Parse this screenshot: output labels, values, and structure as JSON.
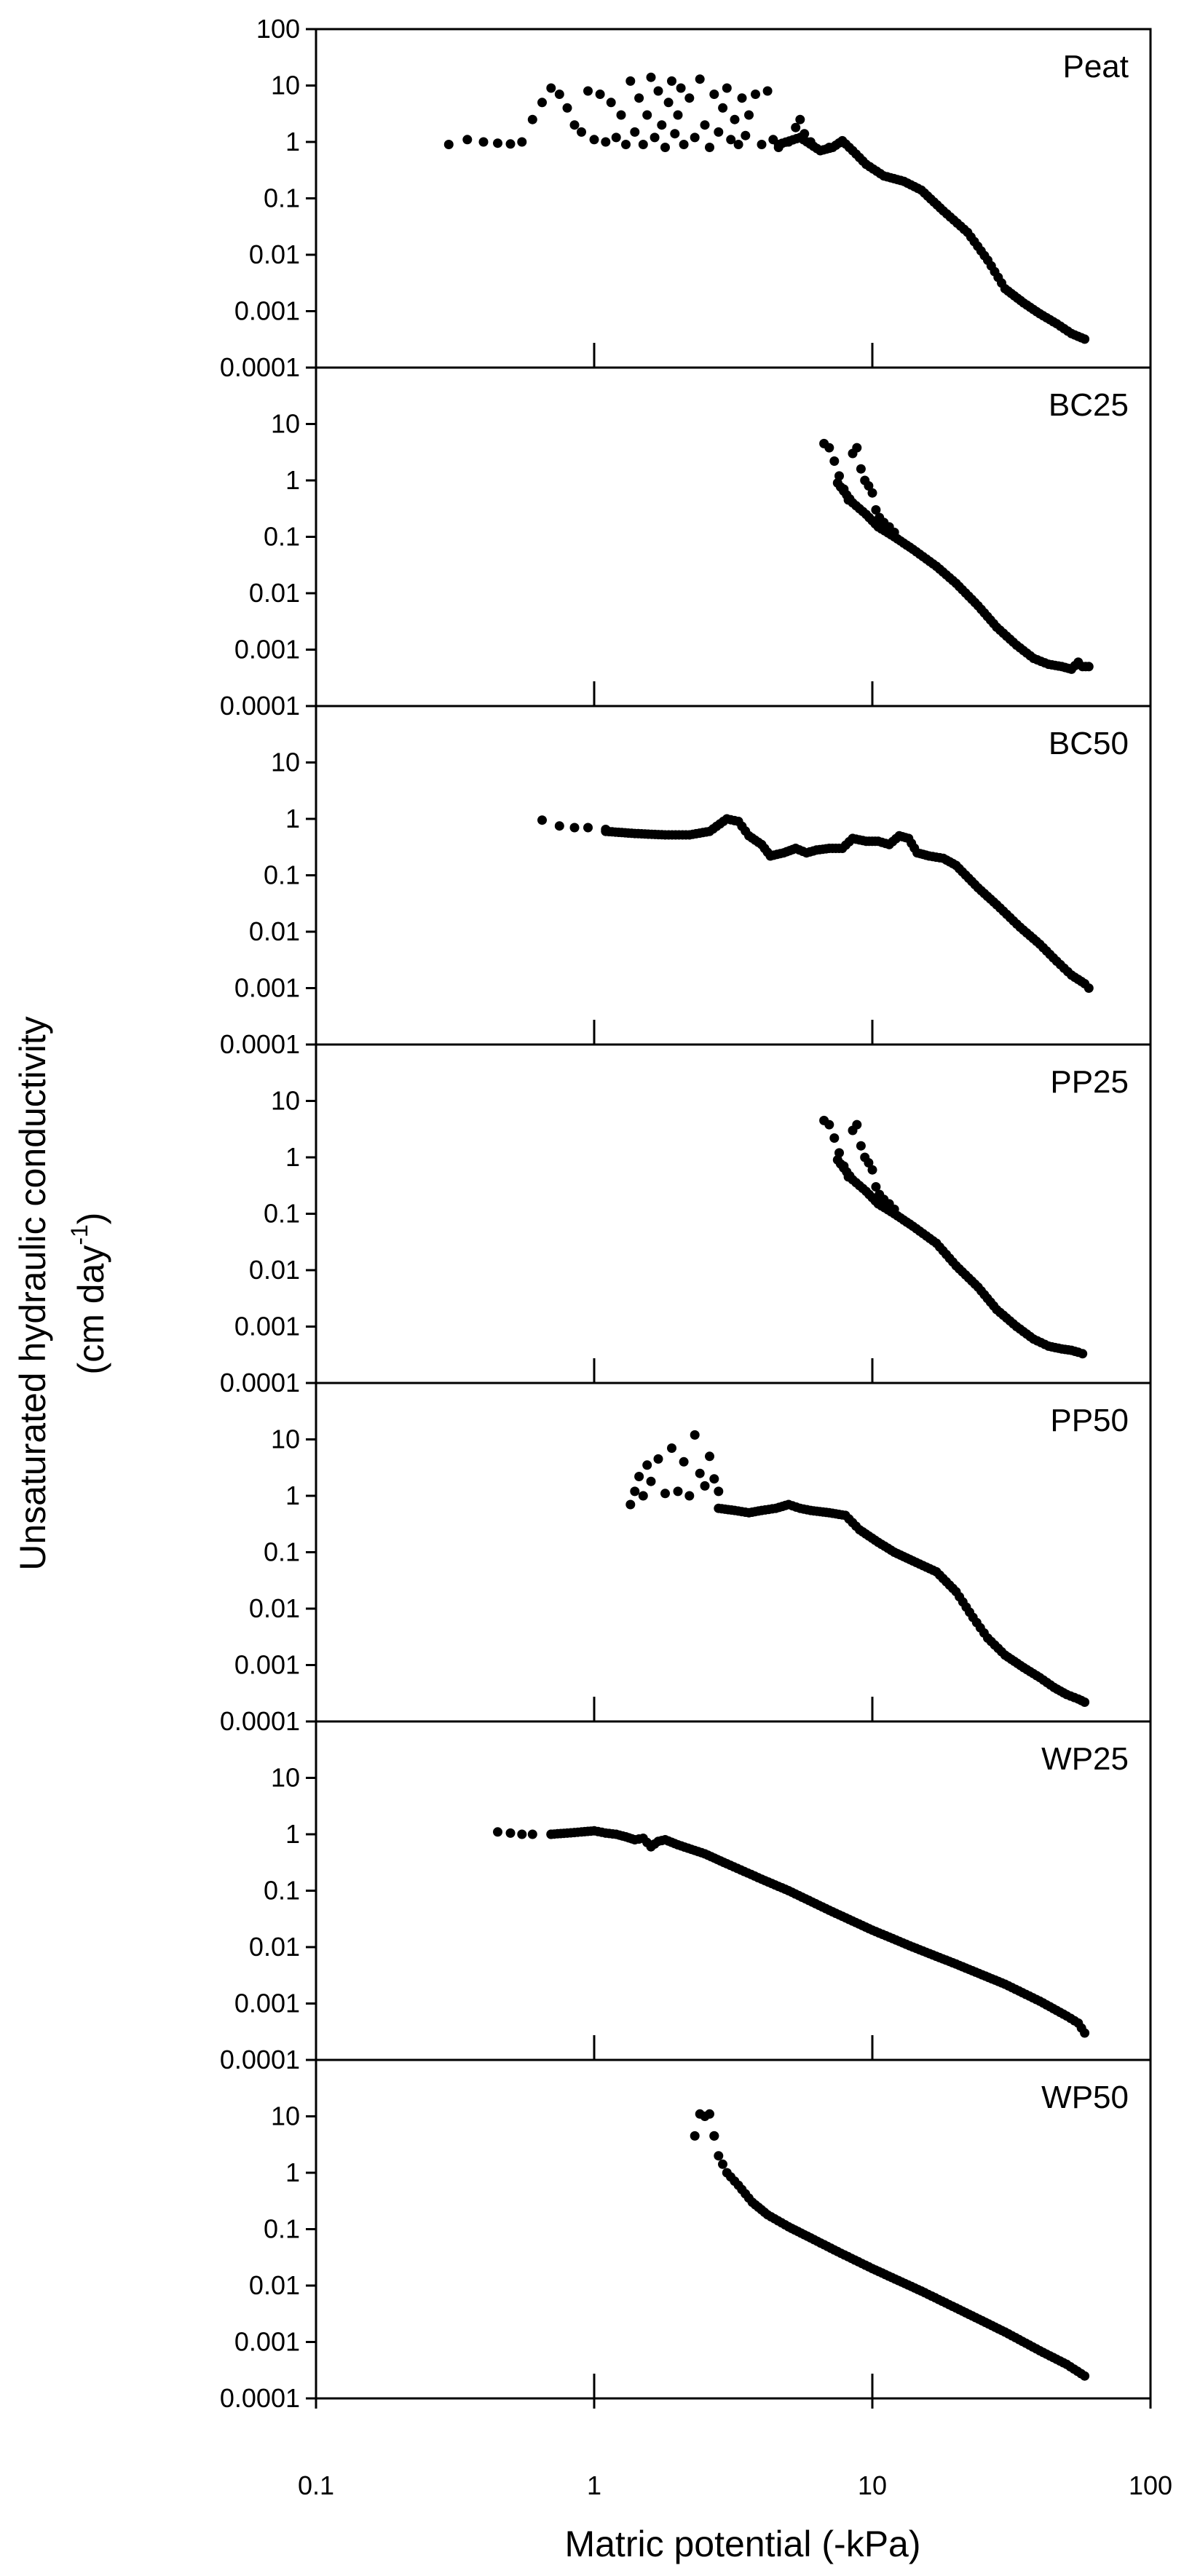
{
  "chart_data": {
    "type": "scatter",
    "layout": "vertical stacked panels sharing x axis",
    "xlabel": "Matric potential (-kPa)",
    "ylabel": "Unsaturated hydraulic conductivity",
    "ylabel_units": "(cm day",
    "ylabel_units_exp": "-1",
    "ylabel_units_close": ")",
    "xscale": "log",
    "yscale": "log",
    "xlim": [
      0.1,
      100
    ],
    "ylim": [
      0.0001,
      100
    ],
    "x_ticks": [
      0.1,
      1,
      10,
      100
    ],
    "x_tick_labels": [
      "0.1",
      "1",
      "10",
      "100"
    ],
    "y_ticks": [
      0.0001,
      0.001,
      0.01,
      0.1,
      1,
      10,
      100
    ],
    "y_tick_labels": [
      "0.0001",
      "0.001",
      "0.01",
      "0.1",
      "1",
      "10",
      "100"
    ],
    "marker": "filled circle",
    "marker_color": "#000000",
    "panels": [
      {
        "name": "Peat",
        "scatter": [
          [
            0.3,
            0.9
          ],
          [
            0.35,
            1.1
          ],
          [
            0.4,
            1.0
          ],
          [
            0.45,
            0.95
          ],
          [
            0.5,
            0.92
          ],
          [
            0.55,
            1.0
          ],
          [
            0.6,
            2.5
          ],
          [
            0.65,
            5
          ],
          [
            0.7,
            9
          ],
          [
            0.75,
            7
          ],
          [
            0.8,
            4
          ],
          [
            0.85,
            2
          ],
          [
            0.9,
            1.5
          ],
          [
            0.95,
            8
          ],
          [
            1.0,
            1.1
          ],
          [
            1.05,
            7
          ],
          [
            1.1,
            1.0
          ],
          [
            1.15,
            5
          ],
          [
            1.2,
            1.2
          ],
          [
            1.25,
            3
          ],
          [
            1.3,
            0.9
          ],
          [
            1.35,
            12
          ],
          [
            1.4,
            1.5
          ],
          [
            1.45,
            6
          ],
          [
            1.5,
            0.9
          ],
          [
            1.55,
            3
          ],
          [
            1.6,
            14
          ],
          [
            1.65,
            1.2
          ],
          [
            1.7,
            8
          ],
          [
            1.75,
            2
          ],
          [
            1.8,
            0.8
          ],
          [
            1.85,
            5
          ],
          [
            1.9,
            12
          ],
          [
            1.95,
            1.4
          ],
          [
            2.0,
            3
          ],
          [
            2.05,
            9
          ],
          [
            2.1,
            0.9
          ],
          [
            2.2,
            6
          ],
          [
            2.3,
            1.2
          ],
          [
            2.4,
            13
          ],
          [
            2.5,
            2
          ],
          [
            2.6,
            0.8
          ],
          [
            2.7,
            7
          ],
          [
            2.8,
            1.5
          ],
          [
            2.9,
            4
          ],
          [
            3.0,
            9
          ],
          [
            3.1,
            1.1
          ],
          [
            3.2,
            2.5
          ],
          [
            3.3,
            0.9
          ],
          [
            3.4,
            6
          ],
          [
            3.5,
            1.3
          ],
          [
            3.6,
            3
          ],
          [
            3.8,
            7
          ],
          [
            4.0,
            0.9
          ],
          [
            4.2,
            8
          ],
          [
            4.4,
            1.1
          ],
          [
            4.6,
            0.8
          ],
          [
            5.0,
            1.0
          ],
          [
            5.3,
            1.8
          ],
          [
            5.5,
            2.5
          ],
          [
            5.7,
            1.4
          ],
          [
            6.0,
            1.0
          ],
          [
            7.0,
            0.8
          ]
        ],
        "curve": [
          [
            4.6,
            0.9
          ],
          [
            5.5,
            1.2
          ],
          [
            6.5,
            0.7
          ],
          [
            7.2,
            0.8
          ],
          [
            7.8,
            1.05
          ],
          [
            8.5,
            0.7
          ],
          [
            9.5,
            0.4
          ],
          [
            11,
            0.25
          ],
          [
            13,
            0.2
          ],
          [
            15,
            0.14
          ],
          [
            18,
            0.06
          ],
          [
            22,
            0.025
          ],
          [
            26,
            0.008
          ],
          [
            30,
            0.0025
          ],
          [
            35,
            0.0014
          ],
          [
            40,
            0.0009
          ],
          [
            46,
            0.0006
          ],
          [
            52,
            0.0004
          ],
          [
            58,
            0.00032
          ]
        ]
      },
      {
        "name": "BC25",
        "scatter": [
          [
            6.7,
            4.5
          ],
          [
            7.0,
            3.8
          ],
          [
            7.3,
            2.2
          ],
          [
            7.6,
            1.2
          ],
          [
            7.9,
            0.7
          ],
          [
            8.2,
            0.45
          ],
          [
            8.5,
            3
          ],
          [
            8.8,
            3.8
          ],
          [
            9.1,
            1.6
          ],
          [
            9.4,
            1.0
          ],
          [
            9.7,
            0.8
          ],
          [
            10.0,
            0.6
          ],
          [
            10.3,
            0.3
          ],
          [
            10.6,
            0.22
          ],
          [
            11.0,
            0.18
          ],
          [
            11.5,
            0.15
          ],
          [
            12,
            0.12
          ]
        ],
        "curve": [
          [
            7.5,
            0.9
          ],
          [
            8.5,
            0.4
          ],
          [
            9.5,
            0.25
          ],
          [
            10.5,
            0.15
          ],
          [
            12,
            0.1
          ],
          [
            14,
            0.06
          ],
          [
            17,
            0.03
          ],
          [
            20,
            0.015
          ],
          [
            24,
            0.006
          ],
          [
            28,
            0.0025
          ],
          [
            33,
            0.0012
          ],
          [
            38,
            0.0007
          ],
          [
            43,
            0.00055
          ],
          [
            48,
            0.0005
          ],
          [
            52,
            0.00045
          ],
          [
            55,
            0.0006
          ],
          [
            57,
            0.0005
          ],
          [
            60,
            0.0005
          ]
        ]
      },
      {
        "name": "BC50",
        "scatter": [
          [
            0.65,
            0.95
          ],
          [
            0.75,
            0.75
          ],
          [
            0.85,
            0.7
          ],
          [
            0.95,
            0.7
          ],
          [
            1.1,
            0.65
          ]
        ],
        "curve": [
          [
            1.1,
            0.6
          ],
          [
            1.4,
            0.55
          ],
          [
            1.8,
            0.52
          ],
          [
            2.2,
            0.52
          ],
          [
            2.6,
            0.6
          ],
          [
            3.0,
            1.0
          ],
          [
            3.3,
            0.9
          ],
          [
            3.6,
            0.5
          ],
          [
            4.0,
            0.35
          ],
          [
            4.3,
            0.22
          ],
          [
            4.8,
            0.25
          ],
          [
            5.3,
            0.3
          ],
          [
            5.8,
            0.25
          ],
          [
            6.3,
            0.28
          ],
          [
            7.0,
            0.3
          ],
          [
            7.8,
            0.3
          ],
          [
            8.5,
            0.45
          ],
          [
            9.5,
            0.4
          ],
          [
            10.5,
            0.4
          ],
          [
            11.5,
            0.35
          ],
          [
            12.5,
            0.5
          ],
          [
            13.5,
            0.45
          ],
          [
            14.5,
            0.25
          ],
          [
            16,
            0.22
          ],
          [
            18,
            0.2
          ],
          [
            20,
            0.15
          ],
          [
            24,
            0.06
          ],
          [
            28,
            0.03
          ],
          [
            34,
            0.012
          ],
          [
            40,
            0.006
          ],
          [
            46,
            0.003
          ],
          [
            52,
            0.0017
          ],
          [
            58,
            0.0012
          ],
          [
            60,
            0.001
          ]
        ]
      },
      {
        "name": "PP25",
        "scatter": [
          [
            6.7,
            4.5
          ],
          [
            7.0,
            3.8
          ],
          [
            7.3,
            2.2
          ],
          [
            7.6,
            1.2
          ],
          [
            7.9,
            0.7
          ],
          [
            8.2,
            0.45
          ],
          [
            8.5,
            3
          ],
          [
            8.8,
            3.8
          ],
          [
            9.1,
            1.6
          ],
          [
            9.4,
            1.0
          ],
          [
            9.7,
            0.8
          ],
          [
            10.0,
            0.6
          ],
          [
            10.3,
            0.3
          ],
          [
            10.6,
            0.22
          ],
          [
            11.0,
            0.18
          ],
          [
            11.5,
            0.15
          ],
          [
            12,
            0.12
          ]
        ],
        "curve": [
          [
            7.5,
            0.9
          ],
          [
            8.5,
            0.4
          ],
          [
            9.5,
            0.25
          ],
          [
            10.5,
            0.15
          ],
          [
            12,
            0.1
          ],
          [
            14,
            0.06
          ],
          [
            17,
            0.03
          ],
          [
            20,
            0.012
          ],
          [
            24,
            0.005
          ],
          [
            28,
            0.002
          ],
          [
            33,
            0.001
          ],
          [
            38,
            0.0006
          ],
          [
            43,
            0.00045
          ],
          [
            48,
            0.0004
          ],
          [
            52,
            0.00038
          ],
          [
            55,
            0.00035
          ],
          [
            57,
            0.00033
          ]
        ]
      },
      {
        "name": "PP50",
        "scatter": [
          [
            1.35,
            0.7
          ],
          [
            1.4,
            1.2
          ],
          [
            1.45,
            2.2
          ],
          [
            1.5,
            1.0
          ],
          [
            1.55,
            3.5
          ],
          [
            1.6,
            1.8
          ],
          [
            1.7,
            4.5
          ],
          [
            1.8,
            1.1
          ],
          [
            1.9,
            7
          ],
          [
            2.0,
            1.2
          ],
          [
            2.1,
            4
          ],
          [
            2.2,
            1.0
          ],
          [
            2.3,
            12
          ],
          [
            2.4,
            2.5
          ],
          [
            2.5,
            1.5
          ],
          [
            2.6,
            5
          ],
          [
            2.7,
            2
          ],
          [
            2.8,
            1.2
          ]
        ],
        "curve": [
          [
            2.8,
            0.6
          ],
          [
            3.2,
            0.55
          ],
          [
            3.6,
            0.5
          ],
          [
            4.0,
            0.55
          ],
          [
            4.5,
            0.6
          ],
          [
            5.0,
            0.7
          ],
          [
            5.5,
            0.6
          ],
          [
            6.0,
            0.55
          ],
          [
            7.0,
            0.5
          ],
          [
            8.0,
            0.45
          ],
          [
            9.0,
            0.25
          ],
          [
            10.5,
            0.15
          ],
          [
            12,
            0.1
          ],
          [
            14,
            0.07
          ],
          [
            17,
            0.045
          ],
          [
            20,
            0.02
          ],
          [
            23,
            0.007
          ],
          [
            26,
            0.003
          ],
          [
            30,
            0.0015
          ],
          [
            35,
            0.0009
          ],
          [
            40,
            0.0006
          ],
          [
            45,
            0.0004
          ],
          [
            50,
            0.0003
          ],
          [
            55,
            0.00025
          ],
          [
            58,
            0.00022
          ]
        ]
      },
      {
        "name": "WP25",
        "scatter": [
          [
            0.45,
            1.1
          ],
          [
            0.5,
            1.05
          ],
          [
            0.55,
            1.0
          ],
          [
            0.6,
            1.0
          ],
          [
            0.7,
            1.0
          ]
        ],
        "curve": [
          [
            0.7,
            1.0
          ],
          [
            0.8,
            1.05
          ],
          [
            0.9,
            1.1
          ],
          [
            1.0,
            1.15
          ],
          [
            1.1,
            1.05
          ],
          [
            1.2,
            1.0
          ],
          [
            1.3,
            0.9
          ],
          [
            1.4,
            0.8
          ],
          [
            1.5,
            0.85
          ],
          [
            1.6,
            0.6
          ],
          [
            1.7,
            0.75
          ],
          [
            1.8,
            0.8
          ],
          [
            2.0,
            0.65
          ],
          [
            2.5,
            0.45
          ],
          [
            3.0,
            0.3
          ],
          [
            4.0,
            0.16
          ],
          [
            5.0,
            0.1
          ],
          [
            7.0,
            0.045
          ],
          [
            10,
            0.02
          ],
          [
            14,
            0.01
          ],
          [
            20,
            0.005
          ],
          [
            30,
            0.0022
          ],
          [
            40,
            0.0011
          ],
          [
            50,
            0.0006
          ],
          [
            55,
            0.00045
          ],
          [
            58,
            0.0003
          ]
        ]
      },
      {
        "name": "WP50",
        "scatter": [
          [
            2.3,
            4.5
          ],
          [
            2.4,
            11
          ],
          [
            2.5,
            10
          ],
          [
            2.6,
            11
          ],
          [
            2.7,
            4.5
          ]
        ],
        "curve": [
          [
            2.7,
            4.5
          ],
          [
            2.8,
            2
          ],
          [
            3.0,
            1.0
          ],
          [
            3.3,
            0.6
          ],
          [
            3.7,
            0.3
          ],
          [
            4.2,
            0.18
          ],
          [
            5.0,
            0.11
          ],
          [
            6.0,
            0.07
          ],
          [
            7.5,
            0.04
          ],
          [
            10,
            0.02
          ],
          [
            15,
            0.008
          ],
          [
            20,
            0.004
          ],
          [
            30,
            0.0015
          ],
          [
            40,
            0.0007
          ],
          [
            50,
            0.0004
          ],
          [
            58,
            0.00025
          ]
        ]
      }
    ]
  }
}
